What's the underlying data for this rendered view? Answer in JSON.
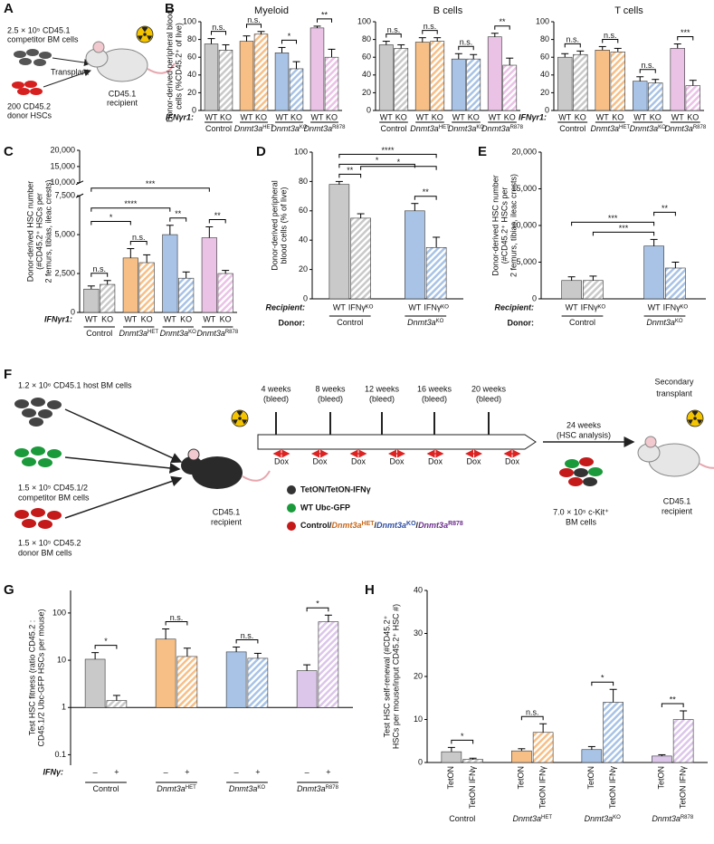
{
  "schematic_a": {
    "panel": "A",
    "competitor": [
      "2.5 × 10⁵ CD45.1",
      "competitor BM cells"
    ],
    "transplant": "Transplant",
    "donor": [
      "200 CD45.2",
      "donor HSCs"
    ],
    "recipient": [
      "CD45.1",
      "recipient"
    ]
  },
  "schematic_f": {
    "panel": "F",
    "host": "1.2 × 10⁶ CD45.1 host BM cells",
    "competitor": [
      "1.5 × 10⁵ CD45.1/2",
      "competitor BM cells"
    ],
    "donor": [
      "1.5 × 10⁵ CD45.2",
      "donor BM cells"
    ],
    "recipient": [
      "CD45.1",
      "recipient"
    ],
    "timepoints": [
      {
        "time": "4 weeks",
        "note": "(bleed)"
      },
      {
        "time": "8 weeks",
        "note": "(bleed)"
      },
      {
        "time": "12 weeks",
        "note": "(bleed)"
      },
      {
        "time": "16 weeks",
        "note": "(bleed)"
      },
      {
        "time": "20 weeks",
        "note": "(bleed)"
      }
    ],
    "dox": [
      "Dox",
      "Dox",
      "Dox",
      "Dox",
      "Dox",
      "Dox",
      "Dox"
    ],
    "analysis": [
      "24 weeks",
      "(HSC analysis)"
    ],
    "ckit": [
      "7.0 × 10⁵ c-Kit⁺",
      "BM cells"
    ],
    "secondary": [
      "Secondary",
      "transplant"
    ],
    "secondary_recipient": [
      "CD45.1",
      "recipient"
    ],
    "legend": [
      "TetON/TetON-IFNγ",
      "WT Ubc-GFP"
    ],
    "legend_genotypes": [
      "Control/",
      "Dnmt3a",
      "HET",
      "/",
      "Dnmt3a",
      "KO",
      "/",
      "Dnmt3a",
      "R878"
    ]
  },
  "chart_data": [
    {
      "type": "bar",
      "panel": "B",
      "title": "Myeloid",
      "ylabel": [
        "Donor-derived peripheral blood",
        "cells (%CD45.2⁺ of live)"
      ],
      "category_label": "IFNγr1:",
      "categories": [
        "WT",
        "KO",
        "WT",
        "KO",
        "WT",
        "KO",
        "WT",
        "KO"
      ],
      "groups": [
        {
          "name": "Control"
        },
        {
          "name": "Dnmt3a",
          "sup": "HET"
        },
        {
          "name": "Dnmt3a",
          "sup": "KO"
        },
        {
          "name": "Dnmt3a",
          "sup": "R878"
        }
      ],
      "values": [
        75,
        68,
        78,
        86,
        65,
        47,
        93,
        60
      ],
      "errors": [
        6,
        6,
        6,
        3,
        6,
        8,
        2,
        9
      ],
      "colors": [
        "#c9c9c9",
        "#c9c9c9",
        "#f7bf86",
        "#f7bf86",
        "#a8c3e6",
        "#a8c3e6",
        "#eac2e6",
        "#eac2e6"
      ],
      "hatched": [
        false,
        true,
        false,
        true,
        false,
        true,
        false,
        true
      ],
      "ylim": [
        0,
        100
      ],
      "yticks": [
        0,
        20,
        40,
        60,
        80,
        100
      ],
      "significance": [
        "n.s.",
        "n.s.",
        "*",
        "**"
      ]
    },
    {
      "type": "bar",
      "title": "B cells",
      "categories": [
        "WT",
        "KO",
        "WT",
        "KO",
        "WT",
        "KO",
        "WT",
        "KO"
      ],
      "groups": [
        {
          "name": "Control"
        },
        {
          "name": "Dnmt3a",
          "sup": "HET"
        },
        {
          "name": "Dnmt3a",
          "sup": "KO"
        },
        {
          "name": "Dnmt3a",
          "sup": "R878"
        }
      ],
      "values": [
        74,
        70,
        77,
        78,
        58,
        58,
        83,
        51
      ],
      "errors": [
        4,
        4,
        5,
        4,
        6,
        5,
        4,
        8
      ],
      "colors": [
        "#c9c9c9",
        "#c9c9c9",
        "#f7bf86",
        "#f7bf86",
        "#a8c3e6",
        "#a8c3e6",
        "#eac2e6",
        "#eac2e6"
      ],
      "hatched": [
        false,
        true,
        false,
        true,
        false,
        true,
        false,
        true
      ],
      "ylim": [
        0,
        100
      ],
      "yticks": [
        0,
        20,
        40,
        60,
        80,
        100
      ],
      "significance": [
        "n.s.",
        "n.s.",
        "n.s.",
        "**"
      ]
    },
    {
      "type": "bar",
      "title": "T cells",
      "category_label": "IFNγr1:",
      "categories": [
        "WT",
        "KO",
        "WT",
        "KO",
        "WT",
        "KO",
        "WT",
        "KO"
      ],
      "groups": [
        {
          "name": "Control"
        },
        {
          "name": "Dnmt3a",
          "sup": "HET"
        },
        {
          "name": "Dnmt3a",
          "sup": "KO"
        },
        {
          "name": "Dnmt3a",
          "sup": "R878"
        }
      ],
      "values": [
        60,
        63,
        68,
        66,
        33,
        31,
        70,
        28
      ],
      "errors": [
        4,
        4,
        4,
        4,
        5,
        4,
        5,
        6
      ],
      "colors": [
        "#c9c9c9",
        "#c9c9c9",
        "#f7bf86",
        "#f7bf86",
        "#a8c3e6",
        "#a8c3e6",
        "#eac2e6",
        "#eac2e6"
      ],
      "hatched": [
        false,
        true,
        false,
        true,
        false,
        true,
        false,
        true
      ],
      "ylim": [
        0,
        100
      ],
      "yticks": [
        0,
        20,
        40,
        60,
        80,
        100
      ],
      "significance": [
        "n.s.",
        "n.s.",
        "n.s.",
        "***"
      ]
    },
    {
      "type": "bar",
      "panel": "C",
      "ylabel": [
        "Donor-derived HSC number",
        "(#CD45.2⁺ HSCs per",
        "2 femurs, tibias, ileac crests)"
      ],
      "category_label": "IFNγr1:",
      "categories": [
        "WT",
        "KO",
        "WT",
        "KO",
        "WT",
        "KO",
        "WT",
        "KO"
      ],
      "groups": [
        {
          "name": "Control"
        },
        {
          "name": "Dnmt3a",
          "sup": "HET"
        },
        {
          "name": "Dnmt3a",
          "sup": "KO"
        },
        {
          "name": "Dnmt3a",
          "sup": "R878"
        }
      ],
      "values": [
        1500,
        1800,
        3500,
        3200,
        5000,
        2200,
        4800,
        2500
      ],
      "errors": [
        200,
        250,
        600,
        500,
        600,
        400,
        700,
        200
      ],
      "colors": [
        "#c9c9c9",
        "#c9c9c9",
        "#f7bf86",
        "#f7bf86",
        "#a8c3e6",
        "#a8c3e6",
        "#eac2e6",
        "#eac2e6"
      ],
      "hatched": [
        false,
        true,
        false,
        true,
        false,
        true,
        false,
        true
      ],
      "ylim": [
        0,
        7500
      ],
      "yticks": [
        0,
        {
          "value": 2500,
          "label": "2,500"
        },
        {
          "value": 5000,
          "label": "5,000"
        },
        {
          "value": 7500,
          "label": "7,500"
        }
      ],
      "upper_ylim": [
        10000,
        20000
      ],
      "upper_yticks": [
        {
          "value": 10000,
          "label": "10,000"
        },
        {
          "value": 15000,
          "label": "15,000"
        },
        {
          "value": 20000,
          "label": "20,000"
        }
      ],
      "significance": [
        "n.s.",
        "n.s.",
        "**",
        "**",
        "*",
        "****",
        "***"
      ]
    },
    {
      "type": "bar",
      "panel": "D",
      "ylabel": [
        "Donor-derived peripheral",
        "blood cells (% of live)"
      ],
      "category_label": "Recipient:",
      "group_label": "Donor:",
      "categories": [
        "WT",
        "IFNγᴷᴼ",
        "WT",
        "IFNγᴷᴼ"
      ],
      "groups": [
        {
          "name": "Control"
        },
        {
          "name": "Dnmt3a",
          "sup": "KO"
        }
      ],
      "values": [
        78,
        55,
        60,
        35
      ],
      "errors": [
        2,
        3,
        5,
        7
      ],
      "colors": [
        "#c9c9c9",
        "#c9c9c9",
        "#a8c3e6",
        "#a8c3e6"
      ],
      "hatched": [
        false,
        true,
        false,
        true
      ],
      "ylim": [
        0,
        100
      ],
      "yticks": [
        0,
        20,
        40,
        60,
        80,
        100
      ],
      "significance": [
        "**",
        "**",
        "*",
        "****",
        "*"
      ]
    },
    {
      "type": "bar",
      "panel": "E",
      "ylabel": [
        "Donor-derived HSC number",
        "(#CD45.2⁺ HSCs per",
        "2 femurs, tibias, ileac crests)"
      ],
      "category_label": "Recipient:",
      "group_label": "Donor:",
      "categories": [
        "WT",
        "IFNγᴷᴼ",
        "WT",
        "IFNγᴷᴼ"
      ],
      "groups": [
        {
          "name": "Control"
        },
        {
          "name": "Dnmt3a",
          "sup": "KO"
        }
      ],
      "values": [
        2500,
        2500,
        7200,
        4200
      ],
      "errors": [
        500,
        600,
        900,
        800
      ],
      "colors": [
        "#c9c9c9",
        "#c9c9c9",
        "#a8c3e6",
        "#a8c3e6"
      ],
      "hatched": [
        false,
        true,
        false,
        true
      ],
      "ylim": [
        0,
        20000
      ],
      "yticks": [
        0,
        {
          "value": 5000,
          "label": "5,000"
        },
        {
          "value": 10000,
          "label": "10,000"
        },
        {
          "value": 15000,
          "label": "15,000"
        },
        {
          "value": 20000,
          "label": "20,000"
        }
      ],
      "significance": [
        "***",
        "***",
        "**"
      ]
    },
    {
      "type": "bar",
      "panel": "G",
      "ylabel": [
        "Test HSC fitness (ratio CD45.2 :",
        "CD45.1/2 Ubc-GFP HSCs per mouse)"
      ],
      "category_label": "IFNγ:",
      "categories": [
        "–",
        "+",
        "–",
        "+",
        "–",
        "+",
        "–",
        "+"
      ],
      "groups": [
        {
          "name": "Control"
        },
        {
          "name": "Dnmt3a",
          "sup": "HET"
        },
        {
          "name": "Dnmt3a",
          "sup": "KO"
        },
        {
          "name": "Dnmt3a",
          "sup": "R878"
        }
      ],
      "values": [
        10.5,
        1.4,
        28,
        12,
        15,
        11,
        6,
        65
      ],
      "errors": [
        4,
        0.4,
        18,
        6,
        4,
        3,
        2,
        25
      ],
      "colors": [
        "#c9c9c9",
        "#c9c9c9",
        "#f7bf86",
        "#f7bf86",
        "#a8c3e6",
        "#a8c3e6",
        "#dcc6ea",
        "#dcc6ea"
      ],
      "hatched": [
        false,
        true,
        false,
        true,
        false,
        true,
        false,
        true
      ],
      "log": true,
      "bar_base": 1,
      "ylim": [
        0.06,
        300
      ],
      "yticks": [
        0.1,
        1,
        10,
        100
      ],
      "significance": [
        "*",
        "n.s.",
        "n.s.",
        "*"
      ]
    },
    {
      "type": "bar",
      "panel": "H",
      "ylabel": [
        "Test HSC self-renewal (#CD45.2⁺",
        "HSCs per mouse/input CD45.2⁺ HSC #)"
      ],
      "categories": [
        "TetON",
        "TetON IFNγ",
        "TetON",
        "TetON IFNγ",
        "TetON",
        "TetON IFNγ",
        "TetON",
        "TetON IFNγ"
      ],
      "groups": [
        {
          "name": "Control"
        },
        {
          "name": "Dnmt3a",
          "sup": "HET"
        },
        {
          "name": "Dnmt3a",
          "sup": "KO"
        },
        {
          "name": "Dnmt3a",
          "sup": "R878"
        }
      ],
      "values": [
        2.5,
        0.7,
        2.7,
        7,
        3,
        14,
        1.5,
        10
      ],
      "errors": [
        1,
        0.3,
        0.5,
        2,
        0.7,
        3,
        0.3,
        2
      ],
      "colors": [
        "#c9c9c9",
        "#c9c9c9",
        "#f7bf86",
        "#f7bf86",
        "#a8c3e6",
        "#a8c3e6",
        "#dcc6ea",
        "#dcc6ea"
      ],
      "hatched": [
        false,
        true,
        false,
        true,
        false,
        true,
        false,
        true
      ],
      "ylim": [
        0,
        40
      ],
      "yticks": [
        0,
        10,
        20,
        30,
        40
      ],
      "significance": [
        "*",
        "n.s.",
        "*",
        "**"
      ]
    }
  ]
}
